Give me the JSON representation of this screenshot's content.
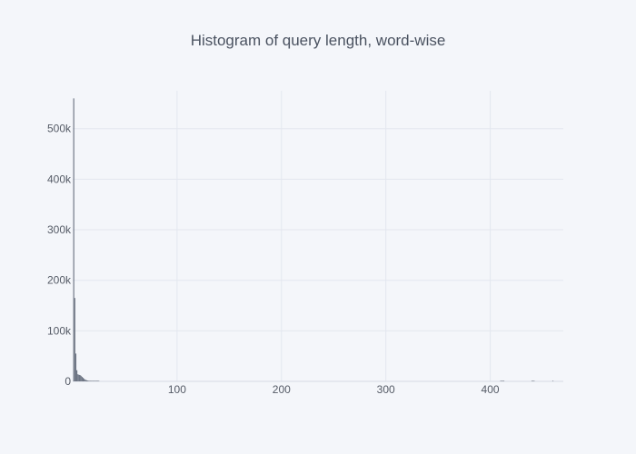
{
  "colors": {
    "background": "#f4f6fa",
    "bar": "#6b7382",
    "grid": "#e3e7ef",
    "text": "#555b66"
  },
  "chart_data": {
    "type": "bar",
    "title": "Histogram of query length, word-wise",
    "xlabel": "",
    "ylabel": "",
    "xlim": [
      0,
      470
    ],
    "ylim": [
      0,
      575000
    ],
    "bin_width": 1,
    "x_ticks": [
      {
        "value": 100,
        "label": "100"
      },
      {
        "value": 200,
        "label": "200"
      },
      {
        "value": 300,
        "label": "300"
      },
      {
        "value": 400,
        "label": "400"
      }
    ],
    "y_ticks": [
      {
        "value": 0,
        "label": "0"
      },
      {
        "value": 100000,
        "label": "100k"
      },
      {
        "value": 200000,
        "label": "200k"
      },
      {
        "value": 300000,
        "label": "300k"
      },
      {
        "value": 400000,
        "label": "400k"
      },
      {
        "value": 500000,
        "label": "500k"
      }
    ],
    "bins": [
      {
        "x": 1,
        "count": 560000
      },
      {
        "x": 2,
        "count": 165000
      },
      {
        "x": 3,
        "count": 55000
      },
      {
        "x": 4,
        "count": 22000
      },
      {
        "x": 5,
        "count": 14000
      },
      {
        "x": 6,
        "count": 13000
      },
      {
        "x": 7,
        "count": 12500
      },
      {
        "x": 8,
        "count": 11000
      },
      {
        "x": 9,
        "count": 9000
      },
      {
        "x": 10,
        "count": 7000
      },
      {
        "x": 11,
        "count": 5000
      },
      {
        "x": 12,
        "count": 3500
      },
      {
        "x": 13,
        "count": 2500
      },
      {
        "x": 14,
        "count": 1800
      },
      {
        "x": 15,
        "count": 1300
      },
      {
        "x": 16,
        "count": 1000
      },
      {
        "x": 17,
        "count": 800
      },
      {
        "x": 18,
        "count": 600
      },
      {
        "x": 19,
        "count": 500
      },
      {
        "x": 20,
        "count": 400
      },
      {
        "x": 21,
        "count": 300
      },
      {
        "x": 22,
        "count": 250
      },
      {
        "x": 23,
        "count": 200
      },
      {
        "x": 24,
        "count": 150
      },
      {
        "x": 25,
        "count": 120
      },
      {
        "x": 410,
        "count": 800
      },
      {
        "x": 411,
        "count": 800
      },
      {
        "x": 412,
        "count": 600
      },
      {
        "x": 413,
        "count": 600
      },
      {
        "x": 440,
        "count": 600
      },
      {
        "x": 441,
        "count": 800
      },
      {
        "x": 442,
        "count": 600
      },
      {
        "x": 460,
        "count": 700
      }
    ]
  }
}
